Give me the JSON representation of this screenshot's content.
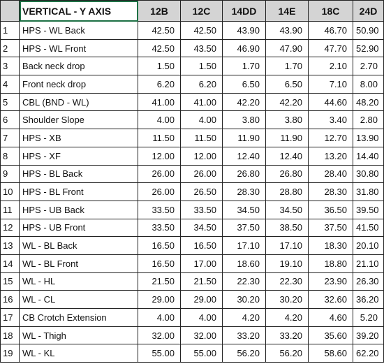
{
  "table": {
    "header": [
      "VERTICAL - Y AXIS",
      "12B",
      "12C",
      "14DD",
      "14E",
      "18C",
      "24D"
    ],
    "rows": [
      [
        "1",
        "HPS - WL Back",
        "42.50",
        "42.50",
        "43.90",
        "43.90",
        "46.70",
        "50.90"
      ],
      [
        "2",
        "HPS - WL Front",
        "42.50",
        "43.50",
        "46.90",
        "47.90",
        "47.70",
        "52.90"
      ],
      [
        "3",
        "Back neck drop",
        "1.50",
        "1.50",
        "1.70",
        "1.70",
        "2.10",
        "2.70"
      ],
      [
        "4",
        "Front neck drop",
        "6.20",
        "6.20",
        "6.50",
        "6.50",
        "7.10",
        "8.00"
      ],
      [
        "5",
        "CBL (BND - WL)",
        "41.00",
        "41.00",
        "42.20",
        "42.20",
        "44.60",
        "48.20"
      ],
      [
        "6",
        "Shoulder Slope",
        "4.00",
        "4.00",
        "3.80",
        "3.80",
        "3.40",
        "2.80"
      ],
      [
        "7",
        "HPS - XB",
        "11.50",
        "11.50",
        "11.90",
        "11.90",
        "12.70",
        "13.90"
      ],
      [
        "8",
        "HPS - XF",
        "12.00",
        "12.00",
        "12.40",
        "12.40",
        "13.20",
        "14.40"
      ],
      [
        "9",
        "HPS - BL Back",
        "26.00",
        "26.00",
        "26.80",
        "26.80",
        "28.40",
        "30.80"
      ],
      [
        "10",
        "HPS - BL Front",
        "26.00",
        "26.50",
        "28.30",
        "28.80",
        "28.30",
        "31.80"
      ],
      [
        "11",
        "HPS - UB Back",
        "33.50",
        "33.50",
        "34.50",
        "34.50",
        "36.50",
        "39.50"
      ],
      [
        "12",
        "HPS - UB Front",
        "33.50",
        "34.50",
        "37.50",
        "38.50",
        "37.50",
        "41.50"
      ],
      [
        "13",
        "WL - BL Back",
        "16.50",
        "16.50",
        "17.10",
        "17.10",
        "18.30",
        "20.10"
      ],
      [
        "14",
        "WL - BL Front",
        "16.50",
        "17.00",
        "18.60",
        "19.10",
        "18.80",
        "21.10"
      ],
      [
        "15",
        "WL - HL",
        "21.50",
        "21.50",
        "22.30",
        "22.30",
        "23.90",
        "26.30"
      ],
      [
        "16",
        "WL - CL",
        "29.00",
        "29.00",
        "30.20",
        "30.20",
        "32.60",
        "36.20"
      ],
      [
        "17",
        "CB Crotch Extension",
        "4.00",
        "4.00",
        "4.20",
        "4.20",
        "4.60",
        "5.20"
      ],
      [
        "18",
        "WL - Thigh",
        "32.00",
        "32.00",
        "33.20",
        "33.20",
        "35.60",
        "39.20"
      ],
      [
        "19",
        "WL - KL",
        "55.00",
        "55.00",
        "56.20",
        "56.20",
        "58.60",
        "62.20"
      ]
    ]
  }
}
